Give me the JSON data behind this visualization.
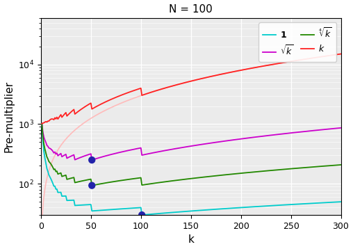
{
  "N": 100,
  "k_max": 300,
  "title": "N = 100",
  "xlabel": "k",
  "ylabel": "Pre-multiplier",
  "color_const": "#00CCCC",
  "color_sqrt": "#CC00CC",
  "color_fourth": "#228800",
  "color_linear": "#FF2222",
  "color_pink": "#FFBBBB",
  "color_dot": "#2222AA",
  "dot_size": 55,
  "bg_color": "#EBEBEB",
  "ylim_low": 30,
  "ylim_high": 60000,
  "xlim_low": 0,
  "xlim_high": 300
}
